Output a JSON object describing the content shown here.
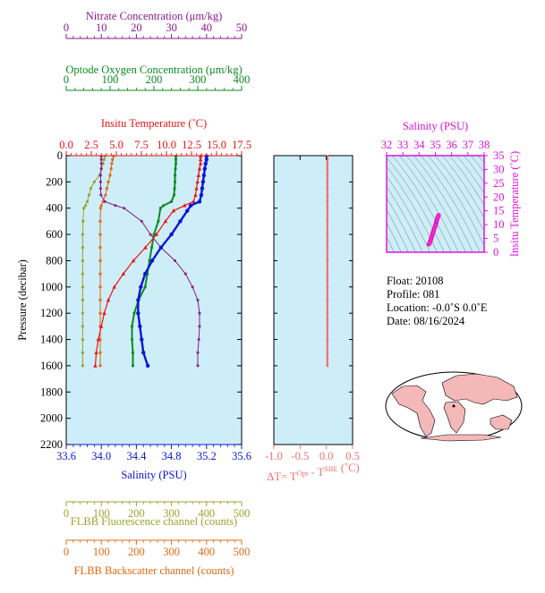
{
  "chart_data": {
    "type": "line",
    "colors": {
      "nitrate": "#8b1a8b",
      "oxygen": "#0b8a20",
      "temperature": "#ee1111",
      "salinity": "#0a14d8",
      "fluorescence": "#a0a030",
      "backscatter": "#e06810",
      "delta_t": "#f07070",
      "ts_axis": "#e010e0",
      "plot_bg": "#cdeef8"
    },
    "axes": {
      "nitrate": {
        "label": "Nitrate Concentration (μm/kg)",
        "range": [
          0,
          50
        ],
        "ticks": [
          "0",
          "10",
          "20",
          "30",
          "40",
          "50"
        ]
      },
      "oxygen": {
        "label": "Optode Oxygen Concentration (μm/kg)",
        "range": [
          0,
          400
        ],
        "ticks": [
          "0",
          "100",
          "200",
          "300",
          "400"
        ]
      },
      "temperature": {
        "label": "Insitu Temperature (˚C)",
        "range": [
          0,
          17.5
        ],
        "ticks": [
          "0.0",
          "2.5",
          "5.0",
          "7.5",
          "10.0",
          "12.5",
          "15.0",
          "17.5"
        ]
      },
      "salinity": {
        "label": "Salinity (PSU)",
        "range": [
          33.6,
          35.6
        ],
        "ticks": [
          "33.6",
          "34.0",
          "34.4",
          "34.8",
          "35.2",
          "35.6"
        ]
      },
      "fluorescence": {
        "label": "FLBB Fluorescence channel (counts)",
        "range": [
          0,
          500
        ],
        "ticks": [
          "0",
          "100",
          "200",
          "300",
          "400",
          "500"
        ]
      },
      "backscatter": {
        "label": "FLBB Backscatter channel (counts)",
        "range": [
          0,
          500
        ],
        "ticks": [
          "0",
          "100",
          "200",
          "300",
          "400",
          "500"
        ]
      },
      "pressure": {
        "label": "Pressure (decibar)",
        "range": [
          0,
          2200
        ],
        "ticks": [
          "0",
          "200",
          "400",
          "600",
          "800",
          "1000",
          "1200",
          "1400",
          "1600",
          "1800",
          "2000",
          "2200"
        ]
      },
      "delta_t": {
        "label": "ΔT= T",
        "sup1": "Opt",
        "mid": " - T",
        "sup2": "SBE",
        "unit": " (˚C)",
        "range": [
          -1.0,
          0.5
        ],
        "ticks": [
          "-1.0",
          "-0.5",
          "0.0",
          "0.5"
        ]
      },
      "ts_salinity": {
        "label": "Salinity (PSU)",
        "range": [
          32,
          38
        ],
        "ticks": [
          "32",
          "33",
          "34",
          "35",
          "36",
          "37",
          "38"
        ]
      },
      "ts_temperature": {
        "label": "Insitu Temperature (˚C)",
        "range": [
          0,
          35
        ],
        "ticks": [
          "0",
          "5",
          "10",
          "15",
          "20",
          "25",
          "30",
          "35"
        ]
      }
    },
    "series": [
      {
        "key": "temperature",
        "pressure": [
          5,
          30,
          60,
          100,
          150,
          200,
          250,
          300,
          350,
          380,
          420,
          500,
          600,
          700,
          800,
          900,
          1000,
          1100,
          1200,
          1300,
          1400,
          1500,
          1600
        ],
        "values": [
          13.4,
          13.4,
          13.4,
          13.3,
          13.2,
          13.1,
          13.0,
          12.9,
          12.7,
          11.8,
          10.7,
          9.9,
          9.0,
          7.9,
          6.7,
          5.7,
          4.8,
          4.2,
          3.8,
          3.5,
          3.2,
          3.0,
          2.9
        ]
      },
      {
        "key": "salinity",
        "pressure": [
          5,
          30,
          60,
          100,
          150,
          200,
          250,
          300,
          350,
          380,
          420,
          500,
          600,
          700,
          800,
          900,
          1000,
          1100,
          1200,
          1300,
          1400,
          1500,
          1600
        ],
        "values": [
          35.2,
          35.2,
          35.19,
          35.18,
          35.17,
          35.16,
          35.15,
          35.14,
          35.12,
          35.02,
          34.98,
          34.9,
          34.8,
          34.68,
          34.58,
          34.5,
          34.45,
          34.42,
          34.42,
          34.44,
          34.46,
          34.48,
          34.53
        ]
      },
      {
        "key": "oxygen",
        "pressure": [
          5,
          30,
          60,
          100,
          150,
          200,
          250,
          300,
          350,
          380,
          400,
          500,
          600,
          700,
          800,
          900,
          1000,
          1100,
          1200,
          1300,
          1400,
          1500,
          1600
        ],
        "values": [
          250,
          250,
          250,
          249,
          248,
          248,
          247,
          246,
          240,
          222,
          215,
          210,
          200,
          195,
          190,
          185,
          180,
          165,
          155,
          150,
          150,
          152,
          152
        ]
      },
      {
        "key": "nitrate",
        "pressure": [
          5,
          30,
          60,
          100,
          150,
          200,
          250,
          300,
          350,
          380,
          400,
          500,
          600,
          700,
          800,
          900,
          1000,
          1100,
          1200,
          1300,
          1400,
          1500,
          1600
        ],
        "values": [
          10.0,
          10.0,
          10.0,
          10.0,
          9.8,
          9.8,
          9.8,
          9.9,
          11.0,
          14.0,
          16.5,
          21.5,
          24.0,
          27.0,
          31.0,
          34.0,
          36.0,
          37.5,
          38.0,
          38.0,
          37.8,
          37.5,
          37.5
        ]
      },
      {
        "key": "fluorescence",
        "pressure": [
          5,
          30,
          60,
          100,
          150,
          200,
          250,
          300,
          350,
          380,
          400,
          500,
          600,
          700,
          800,
          900,
          1000,
          1100,
          1200,
          1300,
          1400,
          1500,
          1600
        ],
        "values": [
          110,
          108,
          105,
          100,
          95,
          80,
          70,
          65,
          60,
          55,
          50,
          48,
          47,
          47,
          47,
          47,
          47,
          47,
          47,
          47,
          47,
          47,
          47
        ]
      },
      {
        "key": "backscatter",
        "pressure": [
          5,
          30,
          60,
          100,
          150,
          200,
          250,
          300,
          350,
          380,
          400,
          500,
          600,
          700,
          800,
          900,
          1000,
          1100,
          1200,
          1300,
          1400,
          1500,
          1600
        ],
        "values": [
          135,
          132,
          130,
          128,
          125,
          120,
          116,
          112,
          105,
          100,
          98,
          97,
          97,
          97,
          97,
          97,
          97,
          97,
          97,
          97,
          97,
          97,
          97
        ]
      },
      {
        "key": "delta_t",
        "pressure": [
          5,
          30,
          60,
          100,
          150,
          200,
          250,
          300,
          350,
          400,
          500,
          600,
          700,
          800,
          900,
          1000,
          1100,
          1200,
          1300,
          1400,
          1500,
          1600
        ],
        "values": [
          0.02,
          0.02,
          0.02,
          0.02,
          0.02,
          0.02,
          0.02,
          0.02,
          0.02,
          0.02,
          0.02,
          0.02,
          0.02,
          0.02,
          0.02,
          0.02,
          0.02,
          0.02,
          0.02,
          0.02,
          0.02,
          0.02
        ]
      },
      {
        "key": "ts",
        "salinity": [
          34.6,
          34.66,
          34.72,
          34.78,
          34.84,
          34.9,
          34.96,
          35.02,
          35.08,
          35.14,
          35.2
        ],
        "temperature": [
          2.9,
          3.5,
          4.5,
          5.7,
          6.9,
          8.0,
          9.0,
          10.0,
          11.5,
          12.6,
          13.4
        ]
      }
    ],
    "grid": false
  },
  "info": {
    "float": "Float:  20108",
    "profile": "Profile:  081",
    "location": "Location:  -0.0˚S   0.0˚E",
    "date": "Date:  08/16/2024"
  }
}
